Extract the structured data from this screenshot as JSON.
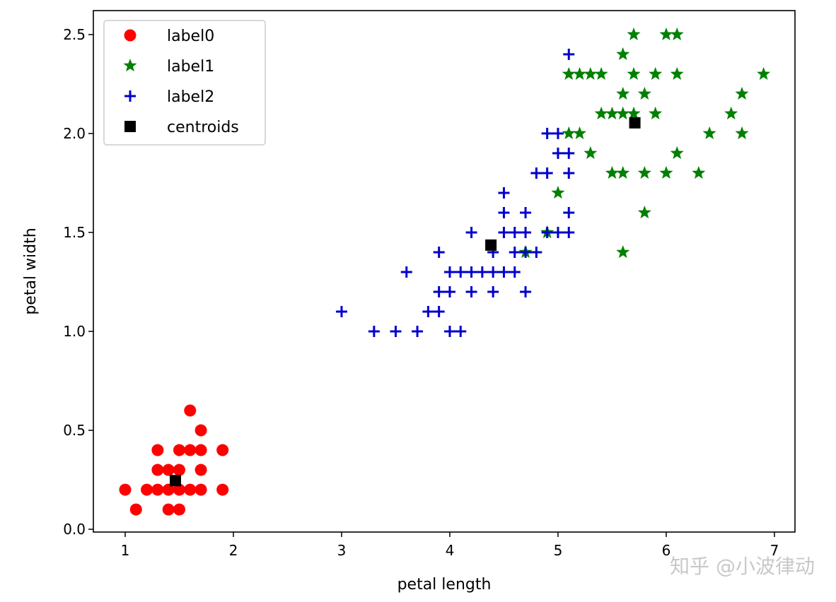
{
  "chart_data": {
    "type": "scatter",
    "title": "",
    "xlabel": "petal length",
    "ylabel": "petal width",
    "xlim": [
      0.706,
      7.19
    ],
    "ylim": [
      -0.014,
      2.621
    ],
    "xticks": [
      1,
      2,
      3,
      4,
      5,
      6,
      7
    ],
    "xtick_labels": [
      "1",
      "2",
      "3",
      "4",
      "5",
      "6",
      "7"
    ],
    "yticks": [
      0.0,
      0.5,
      1.0,
      1.5,
      2.0,
      2.5
    ],
    "ytick_labels": [
      "0.0",
      "0.5",
      "1.0",
      "1.5",
      "2.0",
      "2.5"
    ],
    "grid": false,
    "legend_position": "top-left",
    "series": [
      {
        "name": "label0",
        "marker": "circle",
        "color": "#ff0000",
        "points": [
          [
            1.0,
            0.2
          ],
          [
            1.1,
            0.1
          ],
          [
            1.2,
            0.2
          ],
          [
            1.3,
            0.2
          ],
          [
            1.3,
            0.3
          ],
          [
            1.3,
            0.4
          ],
          [
            1.4,
            0.1
          ],
          [
            1.4,
            0.2
          ],
          [
            1.4,
            0.3
          ],
          [
            1.5,
            0.1
          ],
          [
            1.5,
            0.2
          ],
          [
            1.5,
            0.3
          ],
          [
            1.5,
            0.4
          ],
          [
            1.6,
            0.2
          ],
          [
            1.6,
            0.4
          ],
          [
            1.6,
            0.6
          ],
          [
            1.7,
            0.2
          ],
          [
            1.7,
            0.3
          ],
          [
            1.7,
            0.4
          ],
          [
            1.7,
            0.5
          ],
          [
            1.9,
            0.2
          ],
          [
            1.9,
            0.4
          ]
        ]
      },
      {
        "name": "label1",
        "marker": "star",
        "color": "#008000",
        "points": [
          [
            5.7,
            2.5
          ],
          [
            6.0,
            2.5
          ],
          [
            6.1,
            2.5
          ],
          [
            5.6,
            2.4
          ],
          [
            5.1,
            2.3
          ],
          [
            5.2,
            2.3
          ],
          [
            5.3,
            2.3
          ],
          [
            5.4,
            2.3
          ],
          [
            5.7,
            2.3
          ],
          [
            5.9,
            2.3
          ],
          [
            6.1,
            2.3
          ],
          [
            6.9,
            2.3
          ],
          [
            5.6,
            2.2
          ],
          [
            5.8,
            2.2
          ],
          [
            6.7,
            2.2
          ],
          [
            5.4,
            2.1
          ],
          [
            5.5,
            2.1
          ],
          [
            5.6,
            2.1
          ],
          [
            5.7,
            2.1
          ],
          [
            5.9,
            2.1
          ],
          [
            6.6,
            2.1
          ],
          [
            5.1,
            2.0
          ],
          [
            5.2,
            2.0
          ],
          [
            6.4,
            2.0
          ],
          [
            6.7,
            2.0
          ],
          [
            5.3,
            1.9
          ],
          [
            6.1,
            1.9
          ],
          [
            5.5,
            1.8
          ],
          [
            5.6,
            1.8
          ],
          [
            5.8,
            1.8
          ],
          [
            6.0,
            1.8
          ],
          [
            6.3,
            1.8
          ],
          [
            5.0,
            1.7
          ],
          [
            5.8,
            1.6
          ],
          [
            4.9,
            1.5
          ],
          [
            4.7,
            1.4
          ],
          [
            5.6,
            1.4
          ]
        ]
      },
      {
        "name": "label2",
        "marker": "plus",
        "color": "#0000cc",
        "points": [
          [
            3.3,
            1.0
          ],
          [
            3.5,
            1.0
          ],
          [
            3.7,
            1.0
          ],
          [
            4.0,
            1.0
          ],
          [
            4.1,
            1.0
          ],
          [
            3.0,
            1.1
          ],
          [
            3.8,
            1.1
          ],
          [
            3.9,
            1.1
          ],
          [
            3.9,
            1.2
          ],
          [
            4.0,
            1.2
          ],
          [
            4.2,
            1.2
          ],
          [
            4.4,
            1.2
          ],
          [
            4.7,
            1.2
          ],
          [
            3.6,
            1.3
          ],
          [
            4.0,
            1.3
          ],
          [
            4.1,
            1.3
          ],
          [
            4.2,
            1.3
          ],
          [
            4.3,
            1.3
          ],
          [
            4.4,
            1.3
          ],
          [
            4.5,
            1.3
          ],
          [
            4.6,
            1.3
          ],
          [
            3.9,
            1.4
          ],
          [
            4.4,
            1.4
          ],
          [
            4.6,
            1.4
          ],
          [
            4.7,
            1.4
          ],
          [
            4.8,
            1.4
          ],
          [
            4.2,
            1.5
          ],
          [
            4.5,
            1.5
          ],
          [
            4.6,
            1.5
          ],
          [
            4.7,
            1.5
          ],
          [
            4.9,
            1.5
          ],
          [
            5.0,
            1.5
          ],
          [
            5.1,
            1.5
          ],
          [
            4.5,
            1.6
          ],
          [
            4.7,
            1.6
          ],
          [
            5.1,
            1.6
          ],
          [
            4.5,
            1.7
          ],
          [
            4.8,
            1.8
          ],
          [
            4.9,
            1.8
          ],
          [
            5.1,
            1.8
          ],
          [
            5.0,
            1.9
          ],
          [
            5.1,
            1.9
          ],
          [
            4.9,
            2.0
          ],
          [
            5.0,
            2.0
          ],
          [
            5.1,
            2.4
          ]
        ]
      },
      {
        "name": "centroids",
        "marker": "square",
        "color": "#000000",
        "points": [
          [
            1.464,
            0.246
          ],
          [
            5.71,
            2.054
          ],
          [
            4.38,
            1.436
          ]
        ]
      }
    ]
  },
  "watermark": "知乎 @小波律动"
}
